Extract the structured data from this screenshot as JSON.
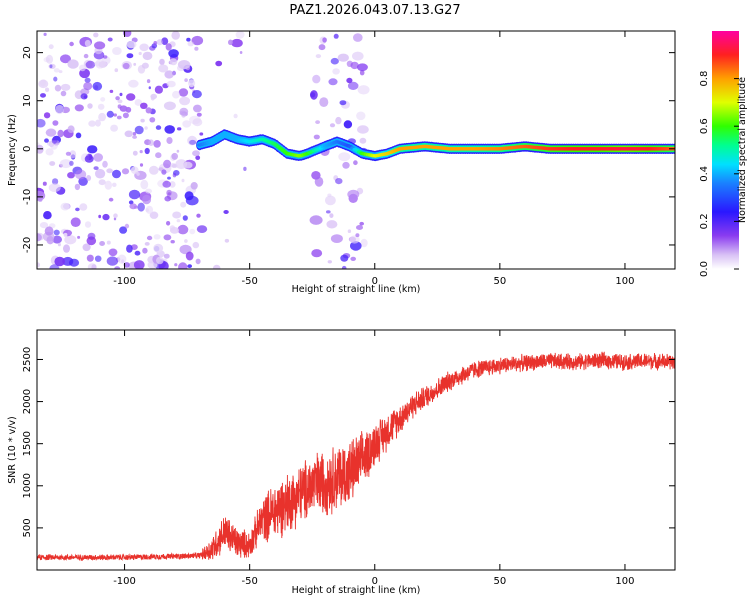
{
  "figure": {
    "title": "PAZ1.2026.043.07.13.G27"
  },
  "chart_data": [
    {
      "type": "heatmap",
      "name": "spectrogram",
      "xlabel": "Height of straight line (km)",
      "ylabel": "Frequency (Hz)",
      "xlim": [
        -135,
        120
      ],
      "ylim": [
        -25,
        24.5
      ],
      "xticks": [
        -100,
        -50,
        0,
        50,
        100
      ],
      "yticks": [
        20,
        10,
        0,
        -10,
        -20
      ],
      "colorbar": {
        "label": "Normalized spectral amplitude",
        "range": [
          0,
          1
        ],
        "ticks": [
          "0.0",
          "0.2",
          "0.4",
          "0.6",
          "0.8"
        ],
        "tick_values": [
          0,
          0.2,
          0.4,
          0.6,
          0.8
        ]
      },
      "noise_regions": [
        {
          "x_range": [
            -135,
            -69
          ],
          "y_range": [
            -25,
            24.5
          ],
          "density": "high"
        },
        {
          "x_range": [
            -64,
            -50
          ],
          "y_range": [
            -25,
            24.5
          ],
          "density": "sparse"
        },
        {
          "x_range": [
            -25,
            -4
          ],
          "y_range": [
            -25,
            24.5
          ],
          "density": "medium"
        }
      ],
      "signal_track": {
        "x": [
          -70,
          -65,
          -60,
          -55,
          -50,
          -45,
          -40,
          -35,
          -30,
          -27,
          -20,
          -15,
          -10,
          -5,
          0,
          5,
          10,
          20,
          30,
          40,
          50,
          60,
          70,
          80,
          90,
          100,
          110,
          120
        ],
        "y": [
          0.8,
          1.5,
          3.0,
          2.0,
          1.5,
          2.0,
          1.0,
          -1.0,
          -1.5,
          -1.0,
          0.5,
          1.5,
          0.5,
          -1.0,
          -1.5,
          -1.0,
          0.0,
          0.5,
          0.0,
          0.0,
          0.0,
          0.5,
          0.0,
          0.0,
          0.0,
          0.0,
          0.0,
          0.0
        ],
        "amplitude": [
          0.35,
          0.4,
          0.4,
          0.4,
          0.45,
          0.5,
          0.55,
          0.6,
          0.65,
          0.6,
          0.4,
          0.35,
          0.3,
          0.6,
          0.7,
          0.75,
          0.8,
          0.8,
          0.8,
          0.8,
          0.82,
          0.85,
          0.88,
          0.9,
          0.9,
          0.92,
          0.9,
          0.85
        ]
      }
    },
    {
      "type": "line",
      "name": "snr",
      "xlabel": "Height of straight line (km)",
      "ylabel": "SNR (10 * v/v)",
      "xlim": [
        -135,
        120
      ],
      "ylim": [
        0,
        2850
      ],
      "xticks": [
        -100,
        -50,
        0,
        50,
        100
      ],
      "yticks": [
        500,
        1000,
        1500,
        2000,
        2500
      ],
      "color": "#e8322c",
      "trend": {
        "x": [
          -135,
          -100,
          -70,
          -65,
          -60,
          -55,
          -50,
          -45,
          -40,
          -35,
          -30,
          -25,
          -20,
          -15,
          -10,
          -5,
          0,
          5,
          10,
          15,
          20,
          25,
          30,
          40,
          50,
          60,
          70,
          80,
          90,
          100,
          110,
          120
        ],
        "y": [
          150,
          150,
          170,
          250,
          450,
          320,
          300,
          600,
          700,
          800,
          900,
          1000,
          1050,
          1100,
          1150,
          1300,
          1500,
          1650,
          1800,
          1950,
          2050,
          2150,
          2250,
          2380,
          2430,
          2460,
          2480,
          2470,
          2490,
          2470,
          2480,
          2470
        ]
      },
      "noise_amplitude": {
        "x": [
          -135,
          -70,
          -65,
          -60,
          -50,
          -40,
          -30,
          -20,
          -10,
          0,
          10,
          20,
          40,
          60,
          120
        ],
        "y": [
          40,
          40,
          180,
          250,
          180,
          400,
          400,
          450,
          450,
          300,
          200,
          150,
          120,
          110,
          110
        ]
      }
    }
  ]
}
